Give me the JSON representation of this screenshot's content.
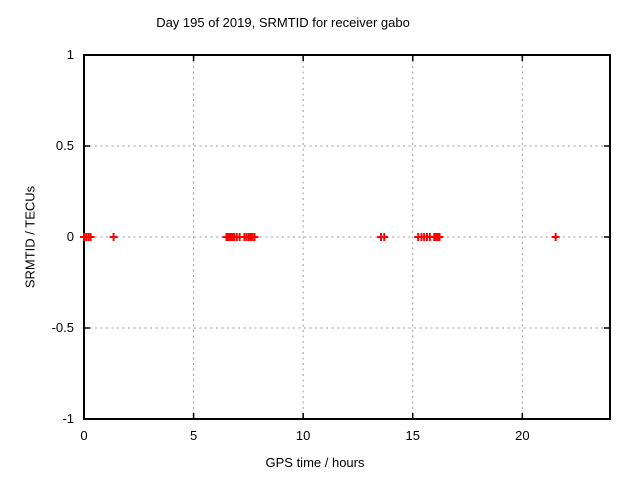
{
  "window": {
    "background": "#ffffff"
  },
  "chart_data": {
    "type": "scatter",
    "title": "Day 195 of 2019, SRMTID for receiver gabo",
    "xlabel": "GPS time / hours",
    "ylabel": "SRMTID / TECUs",
    "xlim": [
      0,
      24
    ],
    "ylim": [
      -1,
      1
    ],
    "xticks": [
      0,
      5,
      10,
      15,
      20
    ],
    "yticks": [
      1,
      0.5,
      0,
      -0.5,
      -1
    ],
    "grid": true,
    "legend_position": "none",
    "marker": {
      "shape": "plus",
      "color": "#ff0000",
      "size": 9,
      "stroke_width": 2
    },
    "colors": {
      "grid": "#9b9b9b",
      "axis": "#000000",
      "text": "#000000",
      "background": "#ffffff"
    },
    "series": [
      {
        "name": "SRMTID",
        "x": [
          0.0,
          0.1,
          0.2,
          0.3,
          1.35,
          6.5,
          6.57,
          6.64,
          6.71,
          6.78,
          6.85,
          6.97,
          7.1,
          7.32,
          7.42,
          7.52,
          7.6,
          7.68,
          7.78,
          13.55,
          13.7,
          15.25,
          15.4,
          15.52,
          15.65,
          15.78,
          15.98,
          16.04,
          16.1,
          16.16,
          16.22,
          21.52
        ],
        "y": [
          0,
          0,
          0,
          0,
          0,
          0,
          0,
          0,
          0,
          0,
          0,
          0,
          0,
          0,
          0,
          0,
          0,
          0,
          0,
          0,
          0,
          0,
          0,
          0,
          0,
          0,
          0,
          0,
          0,
          0,
          0,
          0
        ]
      }
    ]
  }
}
